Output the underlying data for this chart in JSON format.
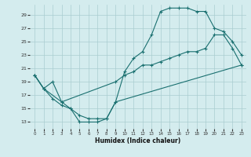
{
  "xlabel": "Humidex (Indice chaleur)",
  "bg_color": "#d4ecee",
  "grid_color": "#aacdd0",
  "line_color": "#1a7070",
  "xlim": [
    -0.5,
    23.5
  ],
  "ylim": [
    12,
    30.5
  ],
  "yticks": [
    13,
    15,
    17,
    19,
    21,
    23,
    25,
    27,
    29
  ],
  "xticks": [
    0,
    1,
    2,
    3,
    4,
    5,
    6,
    7,
    8,
    9,
    10,
    11,
    12,
    13,
    14,
    15,
    16,
    17,
    18,
    19,
    20,
    21,
    22,
    23
  ],
  "line1_x": [
    0,
    1,
    2,
    3,
    4,
    5,
    6,
    7,
    8,
    9,
    10,
    11,
    12,
    13,
    14,
    15,
    16,
    17,
    18,
    19,
    20,
    21,
    22,
    23
  ],
  "line1_y": [
    20,
    18,
    19,
    16,
    15,
    13,
    13,
    13,
    13.5,
    16,
    20.5,
    22.5,
    23.5,
    26,
    29.5,
    30,
    30,
    30,
    29.5,
    29.5,
    27,
    26.5,
    25,
    23
  ],
  "line2_x": [
    0,
    1,
    3,
    9,
    10,
    11,
    12,
    13,
    14,
    15,
    16,
    17,
    18,
    19,
    20,
    21,
    22,
    23
  ],
  "line2_y": [
    20,
    18,
    16,
    19,
    20,
    20.5,
    21.5,
    21.5,
    22,
    22.5,
    23,
    23.5,
    23.5,
    24,
    26,
    26,
    24,
    21.5
  ],
  "line3_x": [
    0,
    1,
    2,
    3,
    4,
    5,
    6,
    7,
    8,
    9,
    23
  ],
  "line3_y": [
    20,
    18,
    16.5,
    15.5,
    15,
    14,
    13.5,
    13.5,
    13.5,
    16,
    21.5
  ]
}
